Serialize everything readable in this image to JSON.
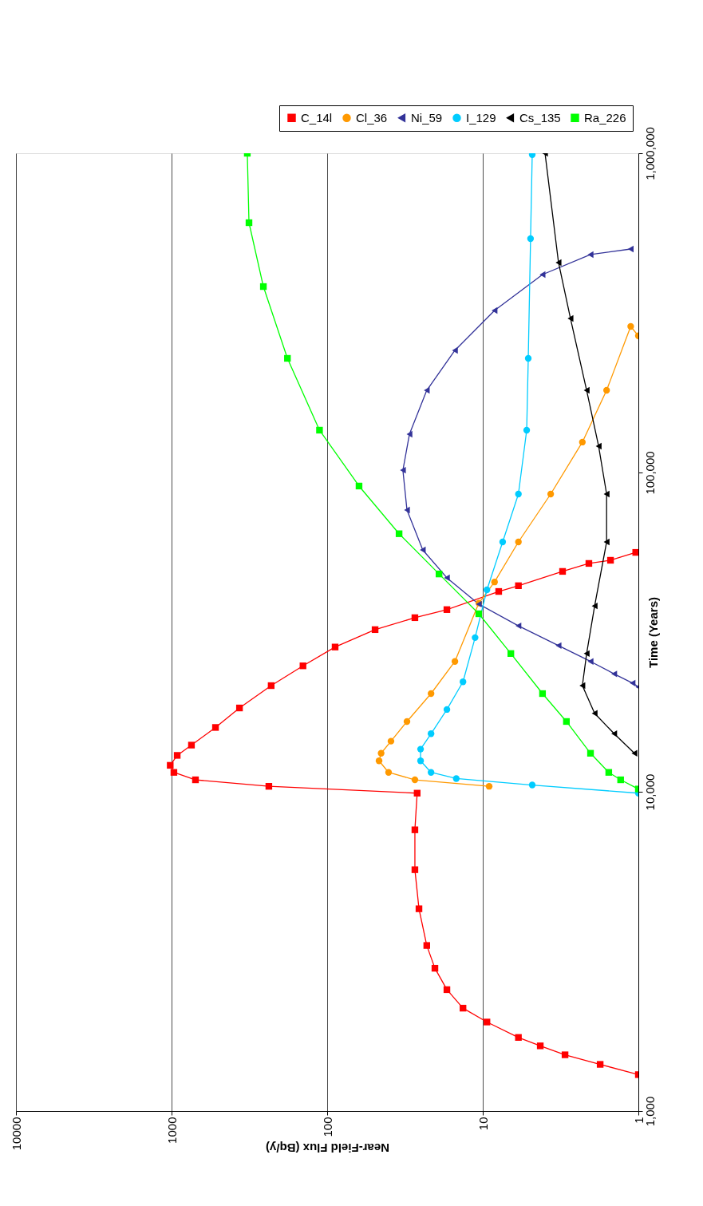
{
  "chart_data": {
    "type": "line",
    "xlabel": "Near-Field Flux (Bq/y)",
    "ylabel": "Time (Years)",
    "log": "xy",
    "xlim": [
      10000,
      1
    ],
    "ylim": [
      1000,
      1000000
    ],
    "xticks": [
      10000,
      1000,
      100,
      10,
      1
    ],
    "yticks": [
      {
        "value": 1000,
        "label": "1,000"
      },
      {
        "value": 10000,
        "label": "10,000"
      },
      {
        "value": 100000,
        "label": "100,000"
      },
      {
        "value": 1000000,
        "label": "1,000,000"
      }
    ],
    "grid": "x",
    "legend": "top right",
    "series": [
      {
        "name": "C_14l",
        "color": "#ff0000",
        "marker": "square",
        "x": [
          1,
          1.76,
          2.96,
          4.27,
          5.9,
          9.4,
          13.4,
          17,
          20.3,
          22.9,
          25.7,
          27.3,
          27.3,
          26.4,
          237,
          702,
          966,
          1020,
          920,
          745,
          522,
          366,
          229,
          143,
          88.9,
          49.2,
          27.3,
          17,
          7.9,
          5.9,
          3.07,
          2.08,
          1.51,
          1.04
        ],
        "values": [
          1300,
          1400,
          1500,
          1600,
          1700,
          1900,
          2100,
          2400,
          2800,
          3300,
          4300,
          5700,
          7600,
          9900,
          10400,
          10900,
          11500,
          12100,
          13000,
          14000,
          15900,
          18300,
          21500,
          24800,
          28400,
          32200,
          35100,
          37200,
          42400,
          44200,
          49000,
          51900,
          53100,
          56200
        ]
      },
      {
        "name": "Cl_36",
        "color": "#ff9900",
        "marker": "circle",
        "x": [
          null,
          9.1,
          27.3,
          40.3,
          46.4,
          45,
          38.9,
          30.7,
          21.5,
          15.1,
          10.6,
          8.4,
          5.9,
          3.66,
          2.29,
          1.6,
          1.12,
          1
        ],
        "values": [
          null,
          10400,
          10900,
          11500,
          12500,
          13200,
          14400,
          16600,
          20300,
          25600,
          39000,
          45400,
          60600,
          85600,
          124500,
          180900,
          286800,
          268000
        ]
      },
      {
        "name": "Ni_59",
        "color": "#333399",
        "marker": "triangle",
        "x": [
          1,
          1.09,
          1.43,
          2.03,
          3.26,
          5.9,
          10.6,
          17,
          24.3,
          30.7,
          32.6,
          29.6,
          22.9,
          15.1,
          8.4,
          4.13,
          2.03,
          1.12
        ],
        "values": [
          21300,
          21900,
          23400,
          25600,
          28700,
          33100,
          38700,
          46800,
          57200,
          76300,
          101700,
          131800,
          180900,
          241300,
          321800,
          416900,
          481500,
          501200
        ]
      },
      {
        "name": "I_129",
        "color": "#00ccff",
        "marker": "circle",
        "x": [
          1,
          4.81,
          14.8,
          21.5,
          25.1,
          25.1,
          21.5,
          17,
          13.4,
          11.2,
          9.4,
          7.45,
          5.9,
          5.22,
          5.1,
          4.93,
          4.81
        ],
        "values": [
          9900,
          10500,
          11000,
          11500,
          12500,
          13600,
          15200,
          18100,
          22100,
          30400,
          42900,
          60600,
          85600,
          135700,
          227800,
          540200,
          990000
        ]
      },
      {
        "name": "Cs_135",
        "color": "#000000",
        "marker": "triangle",
        "x": [
          1.06,
          1.43,
          1.91,
          2.29,
          2.15,
          1.91,
          1.6,
          1.6,
          1.8,
          2.15,
          2.73,
          3.26,
          3.98
        ],
        "values": [
          13200,
          15200,
          17600,
          21500,
          27100,
          38200,
          60600,
          85600,
          120900,
          180900,
          303700,
          454500,
          1000000
        ]
      },
      {
        "name": "Ra_226",
        "color": "#00ff00",
        "marker": "square",
        "x": [
          1,
          1.3,
          1.55,
          2.03,
          2.9,
          4.13,
          6.6,
          10.6,
          19.1,
          34.5,
          62.4,
          112,
          180,
          257,
          318,
          326
        ],
        "values": [
          10200,
          10900,
          11500,
          13200,
          16600,
          20300,
          27100,
          36100,
          48100,
          64300,
          90700,
          135700,
          227800,
          382300,
          606000,
          1000000
        ]
      }
    ]
  }
}
